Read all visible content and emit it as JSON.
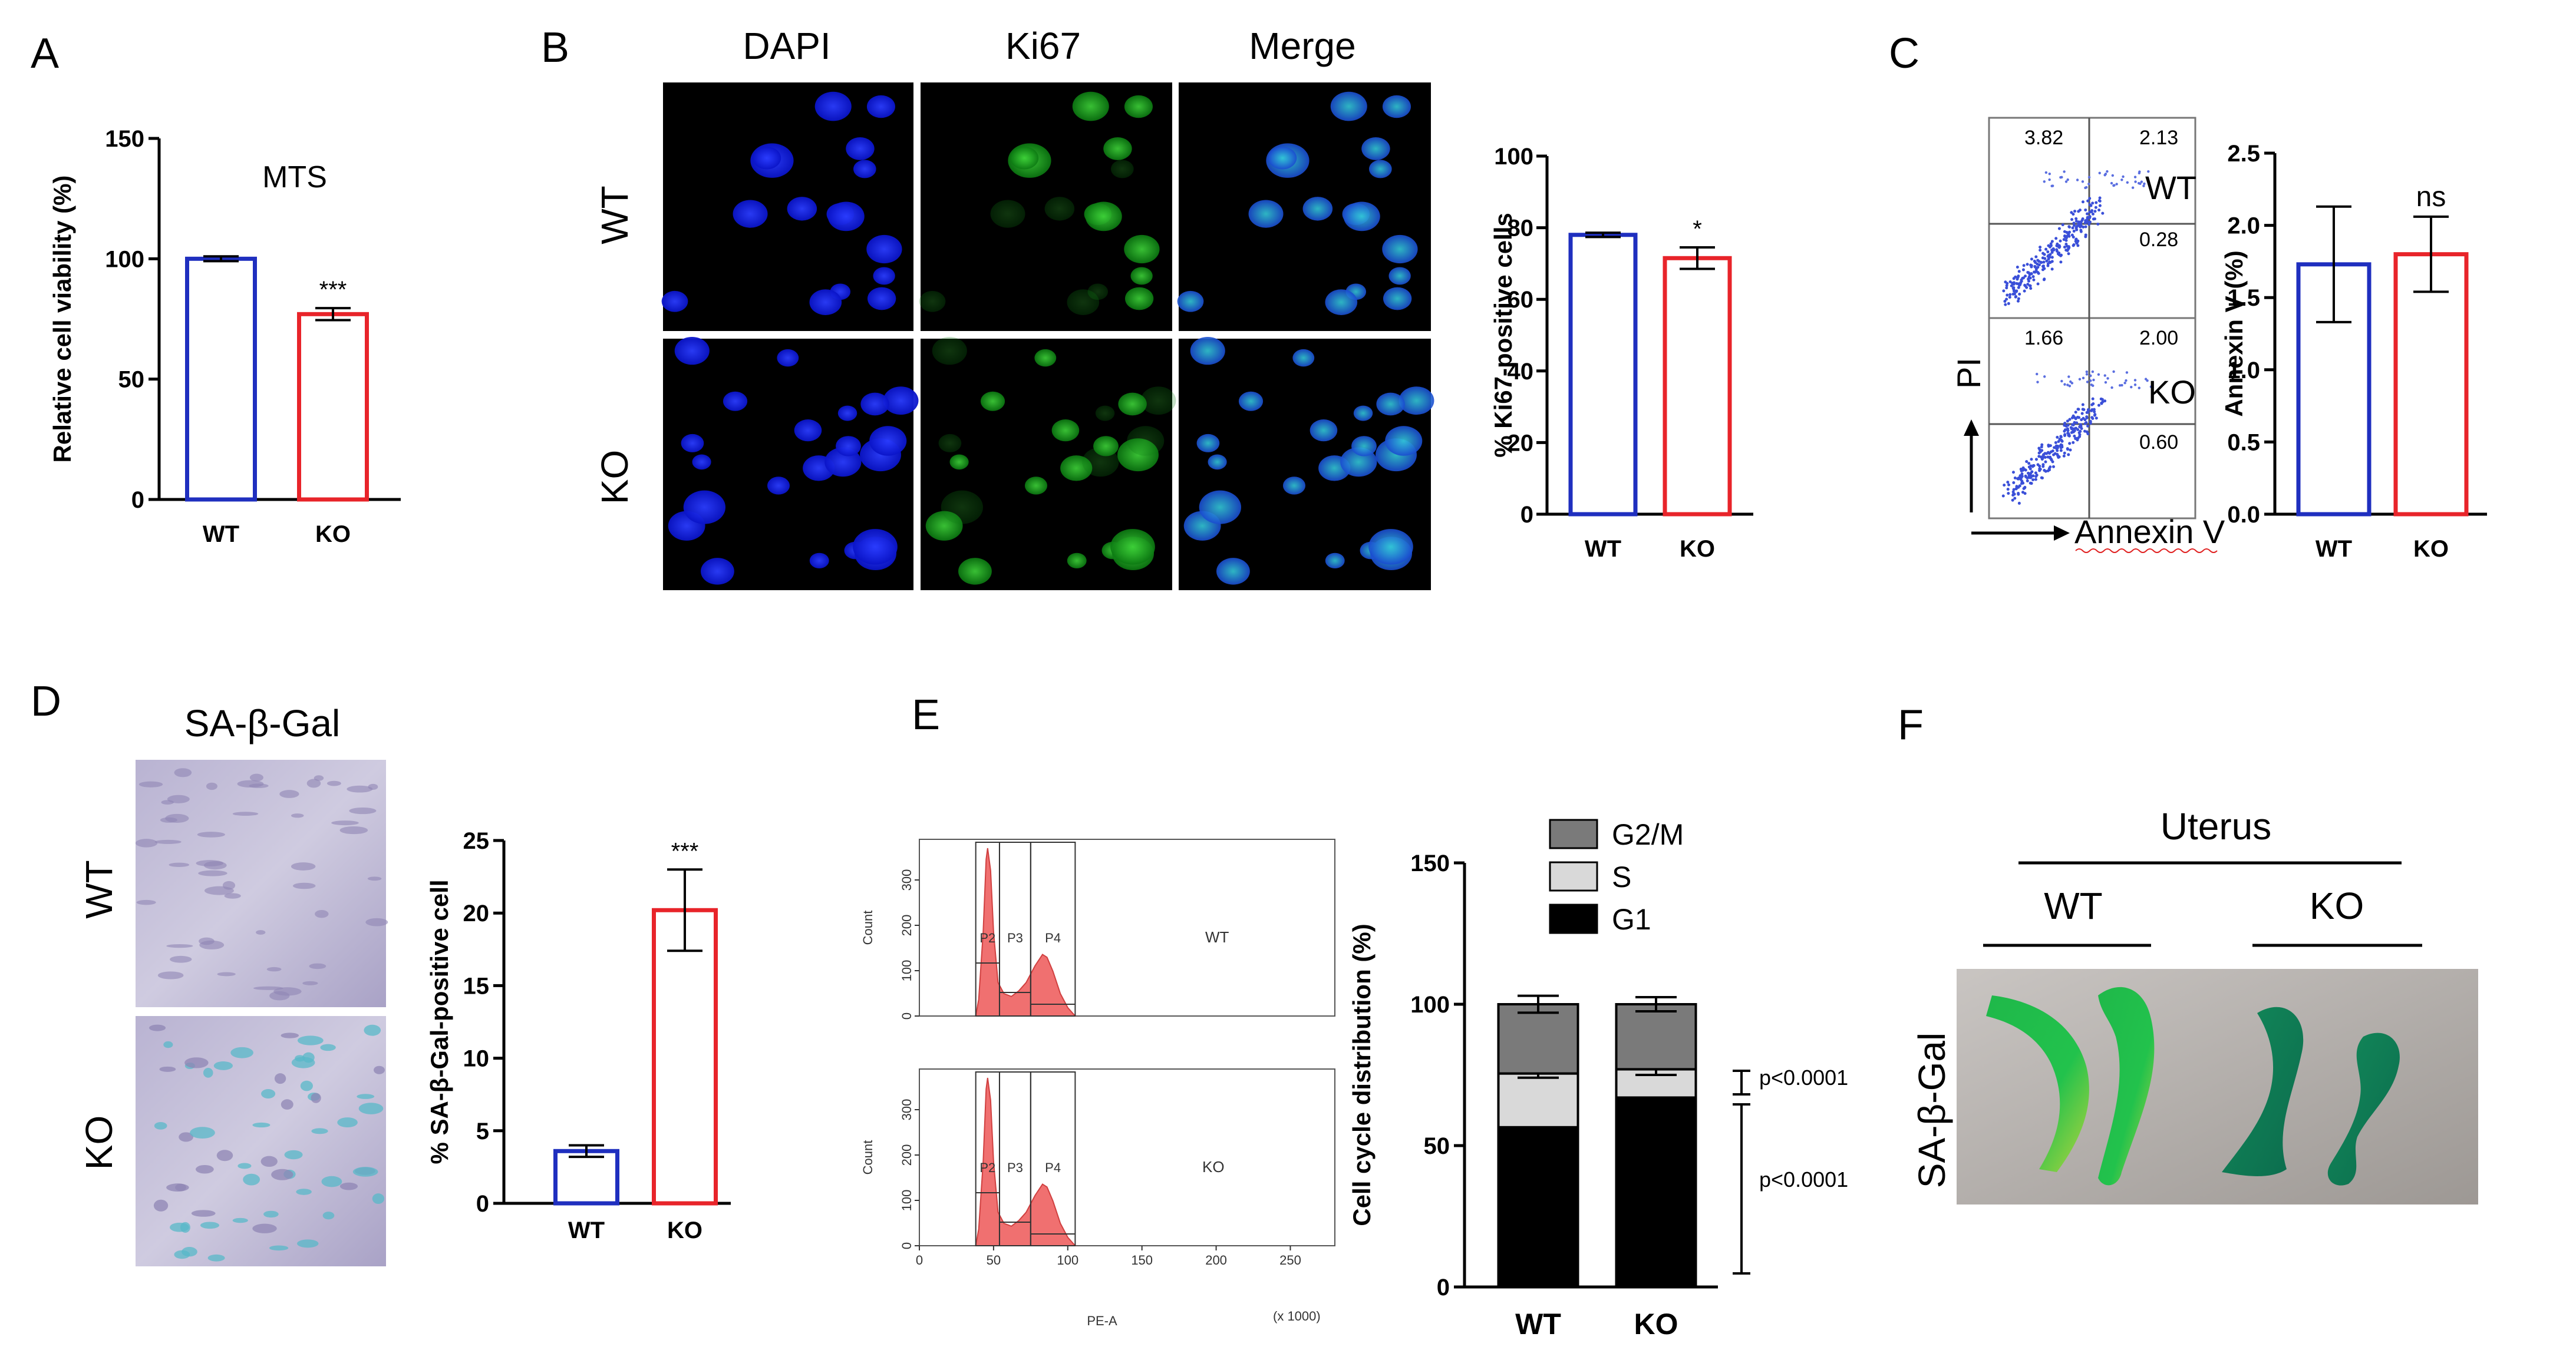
{
  "panels": {
    "A": {
      "letter": "A"
    },
    "B": {
      "letter": "B",
      "col_labels": [
        "DAPI",
        "Ki67",
        "Merge"
      ],
      "row_labels": [
        "WT",
        "KO"
      ]
    },
    "C": {
      "letter": "C",
      "flow_wt_label": "WT",
      "flow_ko_label": "KO",
      "quadrants_wt": [
        "3.82",
        "2.13",
        "0.28"
      ],
      "quadrants_ko": [
        "1.66",
        "2.00",
        "0.60"
      ],
      "y_axis_label": "PI",
      "x_axis_label": "Annexin V"
    },
    "D": {
      "letter": "D",
      "image_title": "SA-β-Gal",
      "row_labels": [
        "WT",
        "KO"
      ]
    },
    "E": {
      "letter": "E",
      "histogram_gates": [
        "P2",
        "P3",
        "P4"
      ],
      "histogram_labels": [
        "WT",
        "KO"
      ],
      "histogram_ylabel": "Count",
      "histogram_xlabel": "PE-A",
      "histogram_xunit": "(x 1000)",
      "histogram_xticks": [
        "0",
        "50",
        "100",
        "150",
        "200",
        "250"
      ],
      "histogram_yticks": [
        "0",
        "100",
        "200",
        "300"
      ]
    },
    "F": {
      "letter": "F",
      "title": "Uterus",
      "group_labels": [
        "WT",
        "KO"
      ],
      "row_label": "SA-β-Gal"
    }
  },
  "colors": {
    "wt": "#1f2fbf",
    "ko": "#e8242a",
    "g2m": "#7a7a7a",
    "s": "#d9d9d9",
    "g1": "#000000",
    "hist": "#f07070"
  },
  "chart_data": [
    {
      "id": "A",
      "type": "bar",
      "title": "MTS",
      "ylabel": "Relative cell viability (%)",
      "categories": [
        "WT",
        "KO"
      ],
      "values": [
        100,
        77
      ],
      "errors": [
        1,
        2.5
      ],
      "ylim": [
        0,
        150
      ],
      "yticks": [
        "0",
        "50",
        "100",
        "150"
      ],
      "significance": [
        "",
        "***"
      ]
    },
    {
      "id": "B",
      "type": "bar",
      "title": "",
      "ylabel": "% Ki67-positive cells",
      "categories": [
        "WT",
        "KO"
      ],
      "values": [
        78,
        71.5
      ],
      "errors": [
        0.6,
        3
      ],
      "ylim": [
        0,
        100
      ],
      "yticks": [
        "0",
        "20",
        "40",
        "60",
        "80",
        "100"
      ],
      "significance": [
        "",
        "*"
      ]
    },
    {
      "id": "C",
      "type": "bar",
      "title": "",
      "ylabel": "Annexin V (%)",
      "categories": [
        "WT",
        "KO"
      ],
      "values": [
        1.73,
        1.8
      ],
      "errors": [
        0.4,
        0.26
      ],
      "ylim": [
        0,
        2.5
      ],
      "yticks": [
        "0.0",
        "0.5",
        "1.0",
        "1.5",
        "2.0",
        "2.5"
      ],
      "significance": [
        "",
        "ns"
      ]
    },
    {
      "id": "D",
      "type": "bar",
      "title": "",
      "ylabel": "% SA-β-Gal-positive cell",
      "categories": [
        "WT",
        "KO"
      ],
      "values": [
        3.6,
        20.2
      ],
      "errors": [
        0.4,
        2.8
      ],
      "ylim": [
        0,
        25
      ],
      "yticks": [
        "0",
        "5",
        "10",
        "15",
        "20",
        "25"
      ],
      "significance": [
        "",
        "***"
      ]
    },
    {
      "id": "E",
      "type": "bar",
      "stacked": true,
      "title": "",
      "ylabel": "Cell cycle distribution (%)",
      "categories": [
        "WT",
        "KO"
      ],
      "series": [
        {
          "name": "G1",
          "values": [
            56.5,
            67
          ],
          "errors": [
            2.5,
            2
          ]
        },
        {
          "name": "S",
          "values": [
            19,
            10
          ],
          "errors": [
            1.5,
            2
          ]
        },
        {
          "name": "G2/M",
          "values": [
            24.5,
            23
          ],
          "errors": [
            3,
            2.5
          ]
        }
      ],
      "legend": [
        "G2/M",
        "S",
        "G1"
      ],
      "ylim": [
        0,
        150
      ],
      "yticks": [
        "0",
        "50",
        "100",
        "150"
      ],
      "pvalues": [
        "p<0.0001",
        "p<0.0001"
      ]
    }
  ]
}
